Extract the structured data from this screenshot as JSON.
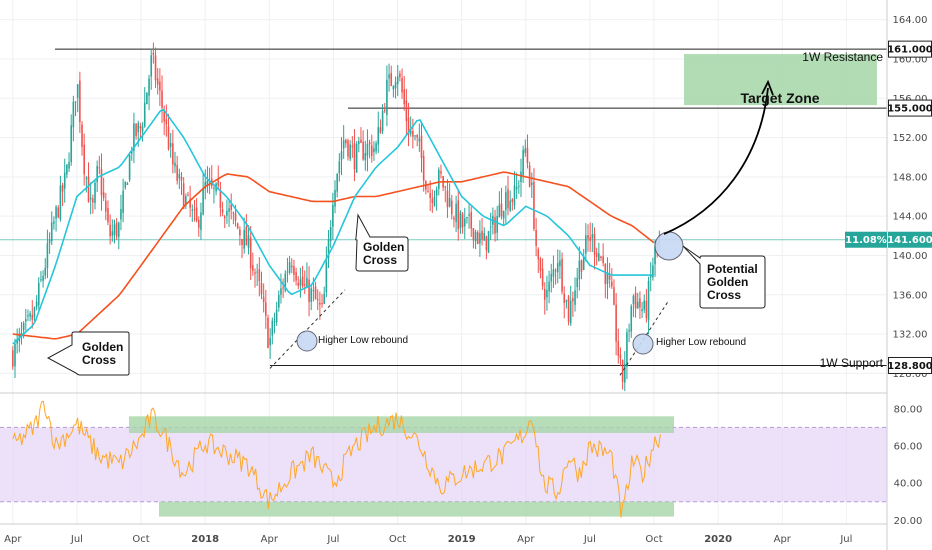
{
  "colors": {
    "bull": "#26a69a",
    "bear": "#ef5350",
    "ma_fast": "#26c6da",
    "ma_slow": "#f4511e",
    "rsi_line": "#ffa726",
    "rsi_band": "#e6d3f7",
    "zone_green": "#a5d6a7",
    "current_green": "#26a69a",
    "grid": "#eef0f3",
    "axis_text": "#4a4a4a"
  },
  "chart_data": {
    "type": "candlestick",
    "price_axis": {
      "ylim": [
        126,
        166
      ],
      "ticks": [
        128,
        132,
        136,
        140,
        144,
        148,
        152,
        156,
        160,
        164
      ],
      "tick_labels": [
        "128.00",
        "132.00",
        "136.00",
        "140.00",
        "144.00",
        "148.00",
        "152.00",
        "156.00",
        "160.00",
        "164.00"
      ]
    },
    "rsi_axis": {
      "ylim": [
        18,
        88
      ],
      "ticks": [
        20,
        40,
        60,
        80
      ],
      "tick_labels": [
        "20.00",
        "40.00",
        "60.00",
        "80.00"
      ],
      "bands": [
        30,
        70
      ]
    },
    "time_axis": {
      "labels": [
        "Apr",
        "Jul",
        "Oct",
        "2018",
        "Apr",
        "Jul",
        "Oct",
        "2019",
        "Apr",
        "Jul",
        "Oct",
        "2020",
        "Apr",
        "Jul"
      ],
      "bold": [
        false,
        false,
        false,
        true,
        false,
        false,
        false,
        true,
        false,
        false,
        false,
        true,
        false,
        false
      ],
      "positions": [
        0,
        3,
        6,
        9,
        12,
        15,
        18,
        21,
        24,
        27,
        30,
        33,
        36,
        39
      ],
      "domain_months": [
        -0.6,
        40.9
      ]
    },
    "price_keypoints": [
      [
        0,
        130
      ],
      [
        1,
        134
      ],
      [
        2,
        144
      ],
      [
        2.5,
        148
      ],
      [
        3,
        158
      ],
      [
        3.3,
        150
      ],
      [
        3.7,
        144
      ],
      [
        4,
        149
      ],
      [
        4.5,
        142
      ],
      [
        5,
        143
      ],
      [
        5.6,
        152
      ],
      [
        6,
        153
      ],
      [
        6.5,
        160
      ],
      [
        7,
        155
      ],
      [
        7.5,
        149
      ],
      [
        8,
        146
      ],
      [
        8.6,
        143
      ],
      [
        9,
        147
      ],
      [
        9.6,
        146
      ],
      [
        10.2,
        144
      ],
      [
        11,
        141
      ],
      [
        11.6,
        136
      ],
      [
        12,
        131
      ],
      [
        12.5,
        136
      ],
      [
        13,
        140
      ],
      [
        13.5,
        137
      ],
      [
        14,
        136
      ],
      [
        14.5,
        134
      ],
      [
        15,
        147
      ],
      [
        15.5,
        152
      ],
      [
        16,
        150
      ],
      [
        16.5,
        151
      ],
      [
        17,
        151
      ],
      [
        17.5,
        157
      ],
      [
        18,
        159
      ],
      [
        18.5,
        153
      ],
      [
        19,
        151
      ],
      [
        19.5,
        146
      ],
      [
        20,
        148
      ],
      [
        20.5,
        145
      ],
      [
        21,
        143
      ],
      [
        21.5,
        143
      ],
      [
        22,
        141
      ],
      [
        22.5,
        143
      ],
      [
        23,
        146
      ],
      [
        23.5,
        146
      ],
      [
        24,
        151
      ],
      [
        24.3,
        146
      ],
      [
        24.6,
        138
      ],
      [
        25,
        136
      ],
      [
        25.5,
        140
      ],
      [
        26,
        134
      ],
      [
        26.5,
        139
      ],
      [
        27,
        142
      ],
      [
        27.5,
        140
      ],
      [
        28,
        136
      ],
      [
        28.5,
        127
      ],
      [
        29,
        136
      ],
      [
        29.6,
        134
      ],
      [
        30,
        140
      ],
      [
        30.25,
        141.6
      ]
    ],
    "ma_fast_points": [
      [
        0,
        131
      ],
      [
        1,
        133
      ],
      [
        2,
        139
      ],
      [
        3,
        146
      ],
      [
        4,
        148
      ],
      [
        5,
        149
      ],
      [
        6,
        152
      ],
      [
        7,
        155
      ],
      [
        8,
        152
      ],
      [
        9,
        148
      ],
      [
        10,
        146
      ],
      [
        11,
        143
      ],
      [
        12,
        139
      ],
      [
        13,
        136
      ],
      [
        14,
        137
      ],
      [
        15,
        141
      ],
      [
        16,
        146
      ],
      [
        17,
        149
      ],
      [
        18,
        151
      ],
      [
        19,
        154
      ],
      [
        20,
        150
      ],
      [
        21,
        146
      ],
      [
        22,
        144
      ],
      [
        23,
        143
      ],
      [
        24,
        145
      ],
      [
        25,
        144
      ],
      [
        26,
        142
      ],
      [
        27,
        139
      ],
      [
        28,
        138
      ],
      [
        29,
        138
      ],
      [
        30,
        138
      ]
    ],
    "ma_slow_points": [
      [
        0,
        132
      ],
      [
        2,
        131.5
      ],
      [
        3,
        132
      ],
      [
        4,
        134
      ],
      [
        5,
        136
      ],
      [
        6,
        139
      ],
      [
        7,
        142
      ],
      [
        8,
        145
      ],
      [
        9,
        147
      ],
      [
        10,
        148.3
      ],
      [
        11,
        148
      ],
      [
        12,
        146.5
      ],
      [
        13,
        146
      ],
      [
        14,
        145.5
      ],
      [
        15,
        145.5
      ],
      [
        16,
        146
      ],
      [
        17,
        146
      ],
      [
        18,
        146.5
      ],
      [
        19,
        147
      ],
      [
        20,
        147.5
      ],
      [
        21,
        147.5
      ],
      [
        22,
        148
      ],
      [
        23,
        148.5
      ],
      [
        24,
        148
      ],
      [
        25,
        147.5
      ],
      [
        26,
        147
      ],
      [
        27,
        145.5
      ],
      [
        28,
        144
      ],
      [
        29,
        143
      ],
      [
        30,
        141.3
      ]
    ],
    "rsi_keypoints": [
      [
        0,
        60
      ],
      [
        1,
        70
      ],
      [
        1.5,
        84
      ],
      [
        2,
        60
      ],
      [
        3,
        72
      ],
      [
        4,
        55
      ],
      [
        5,
        50
      ],
      [
        6,
        64
      ],
      [
        6.5,
        76
      ],
      [
        7,
        68
      ],
      [
        8,
        45
      ],
      [
        9,
        62
      ],
      [
        10,
        56
      ],
      [
        11,
        50
      ],
      [
        12,
        30
      ],
      [
        13,
        45
      ],
      [
        14,
        55
      ],
      [
        15,
        40
      ],
      [
        16,
        60
      ],
      [
        17,
        70
      ],
      [
        18,
        75
      ],
      [
        19,
        62
      ],
      [
        20,
        38
      ],
      [
        21,
        45
      ],
      [
        22,
        50
      ],
      [
        23,
        55
      ],
      [
        24,
        68
      ],
      [
        24.3,
        78
      ],
      [
        24.8,
        40
      ],
      [
        25.5,
        35
      ],
      [
        26,
        55
      ],
      [
        26.5,
        45
      ],
      [
        27,
        60
      ],
      [
        28,
        55
      ],
      [
        28.5,
        22
      ],
      [
        29,
        52
      ],
      [
        29.5,
        45
      ],
      [
        30,
        62
      ],
      [
        30.3,
        66
      ]
    ]
  },
  "labels": {
    "resistance": "1W Resistance",
    "support": "1W Support",
    "target_zone": "Target Zone",
    "golden_cross_1a": "Golden",
    "golden_cross_1b": "Cross",
    "golden_cross_2a": "Golden",
    "golden_cross_2b": "Cross",
    "potential_a": "Potential",
    "potential_b": "Golden",
    "potential_c": "Cross",
    "higher_low_1": "Higher Low rebound",
    "higher_low_2": "Higher Low rebound"
  },
  "price_tags": {
    "resistance_value": "161.000",
    "target_value": "155.000",
    "support_value": "128.800",
    "current_pct": "11.08%",
    "current_value": "141.600",
    "resistance_price": 161.0,
    "target_price": 155.0,
    "support_price": 128.8,
    "current_price": 141.6
  }
}
